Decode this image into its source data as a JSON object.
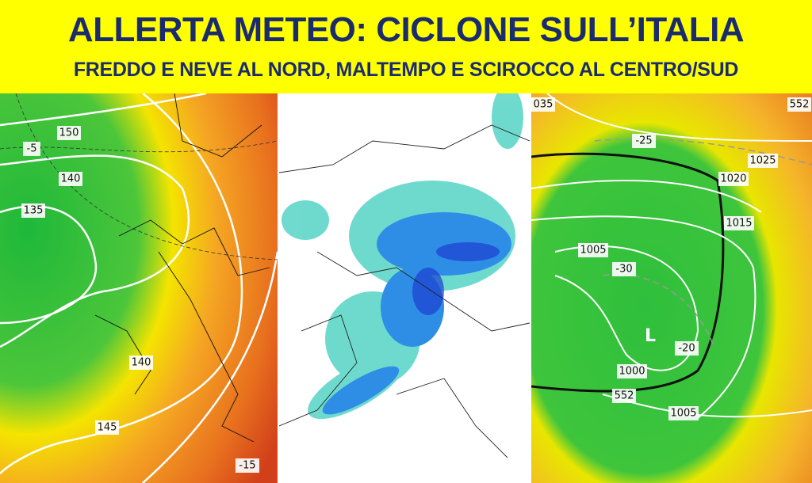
{
  "header": {
    "title": "ALLERTA METEO: CICLONE SULL’ITALIA",
    "subtitle": "FREDDO E NEVE AL NORD, MALTEMPO E SCIROCCO AL CENTRO/SUD"
  },
  "maps": {
    "geopotential": {
      "labels": [
        "150",
        "140",
        "135",
        "-5",
        "140",
        "145",
        "-15"
      ]
    },
    "pressure": {
      "labels": [
        "035",
        "552",
        "-25",
        "1025",
        "1020",
        "1015",
        "1005",
        "-30",
        "L",
        "-20",
        "1000",
        "552",
        "1005"
      ]
    }
  }
}
